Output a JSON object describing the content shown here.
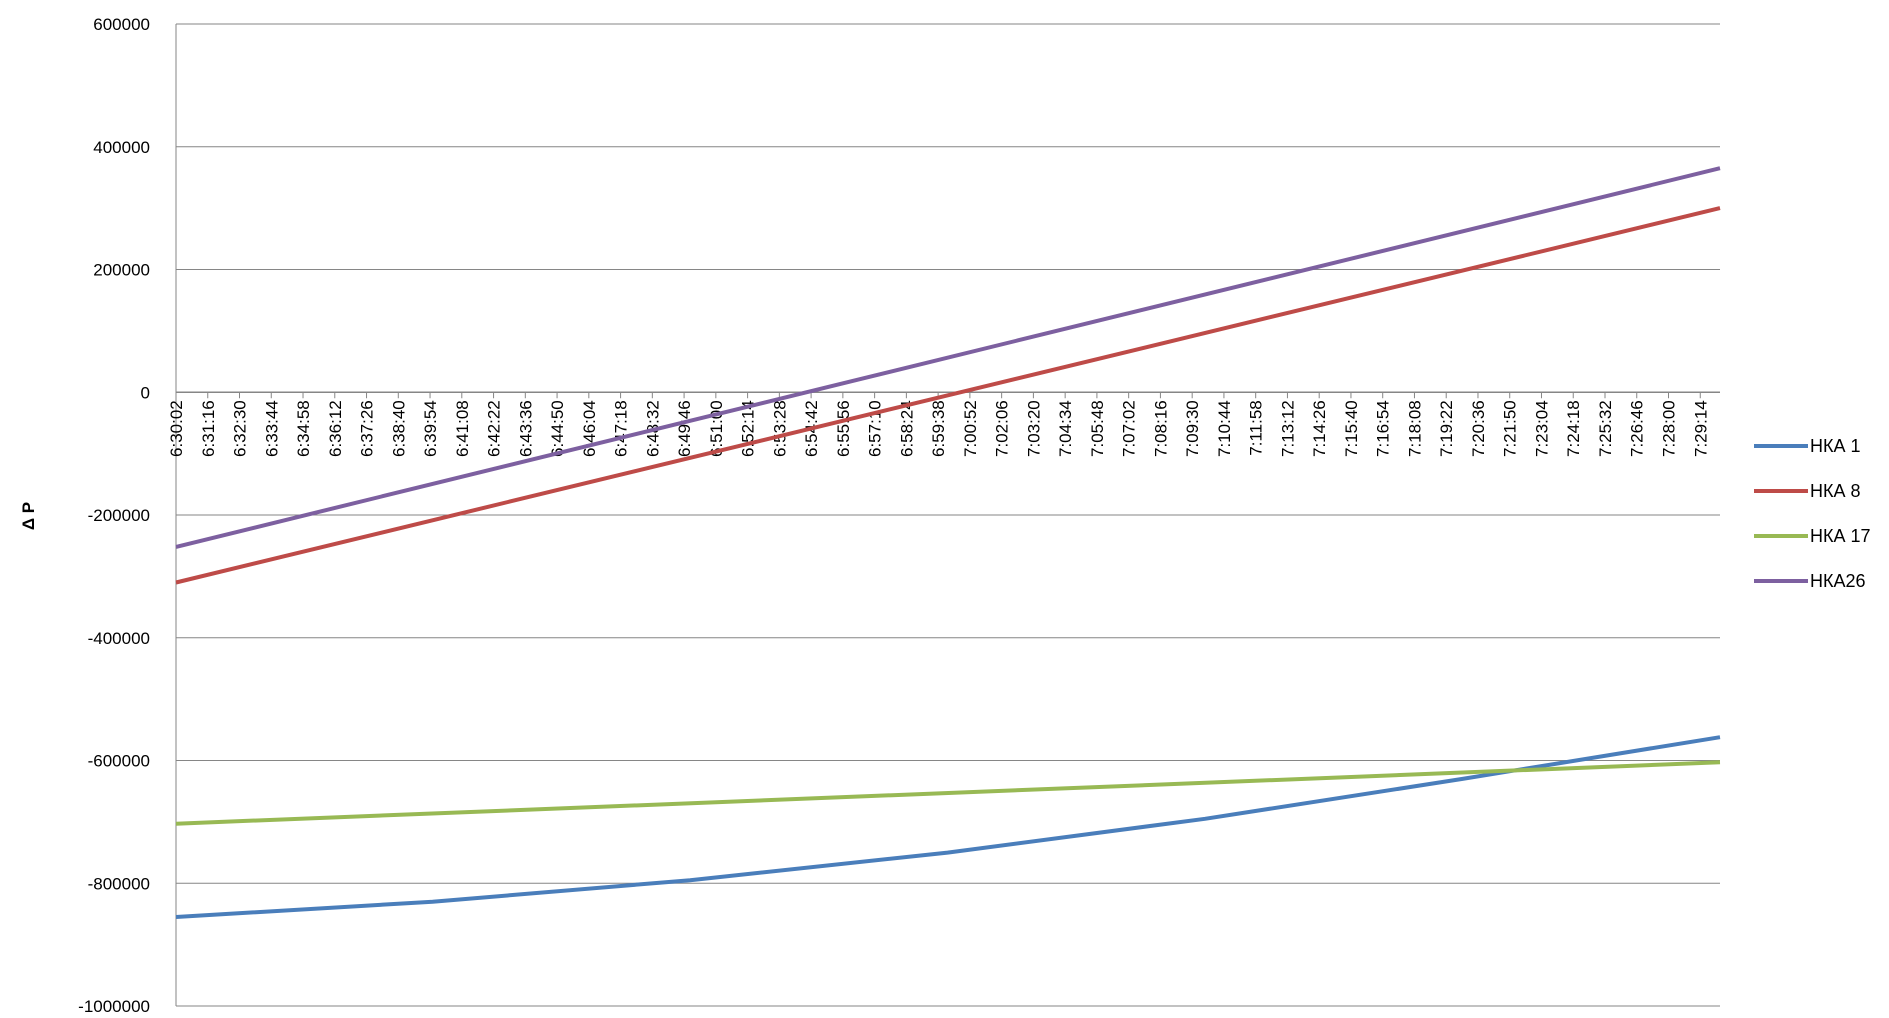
{
  "chart_data": {
    "type": "line",
    "title": "",
    "xlabel": "",
    "ylabel": "Δ P",
    "ylim": [
      -1000000,
      600000
    ],
    "yticks": [
      600000,
      400000,
      200000,
      0,
      -200000,
      -400000,
      -600000,
      -800000,
      -1000000
    ],
    "ytick_labels": [
      "600000",
      "400000",
      "200000",
      "0",
      "-200000",
      "-400000",
      "-600000",
      "-800000",
      "-1000000"
    ],
    "x_categories": [
      "6:30:02",
      "6:31:16",
      "6:32:30",
      "6:33:44",
      "6:34:58",
      "6:36:12",
      "6:37:26",
      "6:38:40",
      "6:39:54",
      "6:41:08",
      "6:42:22",
      "6:43:36",
      "6:44:50",
      "6:46:04",
      "6:47:18",
      "6:48:32",
      "6:49:46",
      "6:51:00",
      "6:52:14",
      "6:53:28",
      "6:54:42",
      "6:55:56",
      "6:57:10",
      "6:58:24",
      "6:59:38",
      "7:00:52",
      "7:02:06",
      "7:03:20",
      "7:04:34",
      "7:05:48",
      "7:07:02",
      "7:08:16",
      "7:09:30",
      "7:10:44",
      "7:11:58",
      "7:13:12",
      "7:14:26",
      "7:15:40",
      "7:16:54",
      "7:18:08",
      "7:19:22",
      "7:20:36",
      "7:21:50",
      "7:23:04",
      "7:24:18",
      "7:25:32",
      "7:26:46",
      "7:28:00",
      "7:29:14"
    ],
    "x_range": [
      "6:30:02",
      "7:30:00"
    ],
    "grid": "horizontal",
    "legend_position": "right",
    "series": [
      {
        "name": "НКА 1",
        "color": "#4a7ebb",
        "x": [
          "6:30:02",
          "6:40:00",
          "6:50:00",
          "7:00:00",
          "7:10:00",
          "7:20:00",
          "7:30:00"
        ],
        "y": [
          -855000,
          -830000,
          -795000,
          -750000,
          -695000,
          -630000,
          -562000
        ]
      },
      {
        "name": "НКА 8",
        "color": "#be4b48",
        "x": [
          "6:30:02",
          "7:30:00"
        ],
        "y": [
          -310000,
          300000
        ]
      },
      {
        "name": "НКА 17",
        "color": "#98b954",
        "x": [
          "6:30:02",
          "7:30:00"
        ],
        "y": [
          -703000,
          -603000
        ]
      },
      {
        "name": "НКА26",
        "color": "#7d60a0",
        "x": [
          "6:30:02",
          "7:30:00"
        ],
        "y": [
          -252000,
          365000
        ]
      }
    ]
  }
}
